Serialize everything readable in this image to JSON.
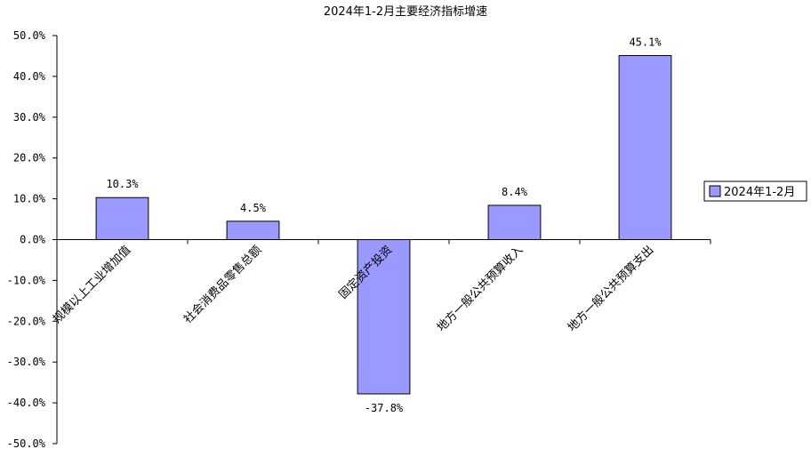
{
  "chart_data": {
    "type": "bar",
    "title": "2024年1-2月主要经济指标增速",
    "categories": [
      "规模以上工业增加值",
      "社会消费品零售总额",
      "固定资产投资",
      "地方一般公共预算收入",
      "地方一般公共预算支出"
    ],
    "series": [
      {
        "name": "2024年1-2月",
        "values": [
          10.3,
          4.5,
          -37.8,
          8.4,
          45.1
        ]
      }
    ],
    "data_labels": [
      "10.3%",
      "4.5%",
      "-37.8%",
      "8.4%",
      "45.1%"
    ],
    "ylim": [
      -50,
      50
    ],
    "yticks": [
      50,
      40,
      30,
      20,
      10,
      0,
      -10,
      -20,
      -30,
      -40,
      -50
    ],
    "ytick_labels": [
      "50.0%",
      "40.0%",
      "30.0%",
      "20.0%",
      "10.0%",
      "0.0%",
      "-10.0%",
      "-20.0%",
      "-30.0%",
      "-40.0%",
      "-50.0%"
    ],
    "grid": false,
    "legend_position": "right",
    "colors": {
      "bar_fill": "#9999FF",
      "bar_stroke": "#000000",
      "axis": "#000000"
    }
  }
}
